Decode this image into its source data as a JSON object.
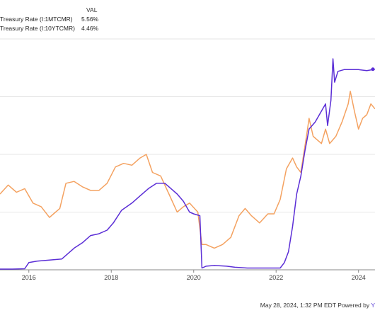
{
  "legend": {
    "header": "VAL",
    "series": [
      {
        "name": "Treasury Rate (I:1MTCMR)",
        "value": "5.56%",
        "color": "#5b2ed6"
      },
      {
        "name": "Treasury Rate (I:10YTCMR)",
        "value": "4.46%",
        "color": "#f4a261"
      }
    ]
  },
  "footer": {
    "text": "May 28, 2024, 1:32 PM EDT Powered by",
    "brand": "Y"
  },
  "chart_data": {
    "type": "line",
    "title": "",
    "xlabel": "",
    "ylabel": "",
    "x_ticks": [
      "2016",
      "2018",
      "2020",
      "2022",
      "2024"
    ],
    "x_range": [
      2015.3,
      2024.4
    ],
    "y_range": [
      0,
      6.4
    ],
    "grid": "horizontal",
    "series": [
      {
        "name": "Treasury Rate (I:1MTCMR)",
        "color": "#5b2ed6",
        "points": [
          [
            2015.3,
            0.02
          ],
          [
            2015.6,
            0.02
          ],
          [
            2015.9,
            0.03
          ],
          [
            2016.0,
            0.2
          ],
          [
            2016.2,
            0.24
          ],
          [
            2016.4,
            0.26
          ],
          [
            2016.6,
            0.28
          ],
          [
            2016.8,
            0.3
          ],
          [
            2016.95,
            0.45
          ],
          [
            2017.1,
            0.6
          ],
          [
            2017.3,
            0.75
          ],
          [
            2017.5,
            0.95
          ],
          [
            2017.7,
            1.0
          ],
          [
            2017.9,
            1.1
          ],
          [
            2018.05,
            1.3
          ],
          [
            2018.25,
            1.65
          ],
          [
            2018.5,
            1.85
          ],
          [
            2018.7,
            2.05
          ],
          [
            2018.9,
            2.25
          ],
          [
            2019.1,
            2.4
          ],
          [
            2019.3,
            2.4
          ],
          [
            2019.5,
            2.2
          ],
          [
            2019.6,
            2.1
          ],
          [
            2019.75,
            1.9
          ],
          [
            2019.9,
            1.6
          ],
          [
            2020.0,
            1.55
          ],
          [
            2020.15,
            1.5
          ],
          [
            2020.2,
            0.05
          ],
          [
            2020.3,
            0.1
          ],
          [
            2020.5,
            0.12
          ],
          [
            2020.8,
            0.1
          ],
          [
            2021.0,
            0.07
          ],
          [
            2021.3,
            0.05
          ],
          [
            2021.6,
            0.05
          ],
          [
            2021.9,
            0.05
          ],
          [
            2022.1,
            0.05
          ],
          [
            2022.2,
            0.2
          ],
          [
            2022.3,
            0.5
          ],
          [
            2022.4,
            1.2
          ],
          [
            2022.5,
            2.1
          ],
          [
            2022.6,
            2.6
          ],
          [
            2022.7,
            3.3
          ],
          [
            2022.8,
            3.9
          ],
          [
            2022.95,
            4.1
          ],
          [
            2023.1,
            4.4
          ],
          [
            2023.2,
            4.6
          ],
          [
            2023.25,
            4.0
          ],
          [
            2023.33,
            4.7
          ],
          [
            2023.38,
            5.85
          ],
          [
            2023.42,
            5.2
          ],
          [
            2023.5,
            5.5
          ],
          [
            2023.65,
            5.55
          ],
          [
            2023.8,
            5.55
          ],
          [
            2024.0,
            5.55
          ],
          [
            2024.2,
            5.52
          ],
          [
            2024.4,
            5.56
          ]
        ]
      },
      {
        "name": "Treasury Rate (I:10YTCMR)",
        "color": "#f4a261",
        "points": [
          [
            2015.3,
            2.1
          ],
          [
            2015.5,
            2.35
          ],
          [
            2015.7,
            2.15
          ],
          [
            2015.9,
            2.25
          ],
          [
            2016.1,
            1.85
          ],
          [
            2016.3,
            1.75
          ],
          [
            2016.5,
            1.45
          ],
          [
            2016.6,
            1.55
          ],
          [
            2016.75,
            1.7
          ],
          [
            2016.9,
            2.4
          ],
          [
            2017.1,
            2.45
          ],
          [
            2017.3,
            2.3
          ],
          [
            2017.5,
            2.2
          ],
          [
            2017.7,
            2.2
          ],
          [
            2017.9,
            2.4
          ],
          [
            2018.1,
            2.85
          ],
          [
            2018.3,
            2.95
          ],
          [
            2018.5,
            2.9
          ],
          [
            2018.7,
            3.1
          ],
          [
            2018.85,
            3.2
          ],
          [
            2019.0,
            2.7
          ],
          [
            2019.2,
            2.6
          ],
          [
            2019.4,
            2.1
          ],
          [
            2019.6,
            1.6
          ],
          [
            2019.75,
            1.75
          ],
          [
            2019.9,
            1.85
          ],
          [
            2020.1,
            1.6
          ],
          [
            2020.2,
            0.7
          ],
          [
            2020.3,
            0.7
          ],
          [
            2020.5,
            0.6
          ],
          [
            2020.7,
            0.7
          ],
          [
            2020.9,
            0.9
          ],
          [
            2021.1,
            1.5
          ],
          [
            2021.25,
            1.7
          ],
          [
            2021.4,
            1.5
          ],
          [
            2021.6,
            1.3
          ],
          [
            2021.8,
            1.55
          ],
          [
            2021.95,
            1.55
          ],
          [
            2022.1,
            1.95
          ],
          [
            2022.25,
            2.8
          ],
          [
            2022.4,
            3.1
          ],
          [
            2022.5,
            2.85
          ],
          [
            2022.6,
            2.7
          ],
          [
            2022.75,
            3.8
          ],
          [
            2022.8,
            4.2
          ],
          [
            2022.9,
            3.7
          ],
          [
            2023.1,
            3.5
          ],
          [
            2023.2,
            3.9
          ],
          [
            2023.3,
            3.5
          ],
          [
            2023.45,
            3.7
          ],
          [
            2023.6,
            4.1
          ],
          [
            2023.75,
            4.6
          ],
          [
            2023.8,
            4.95
          ],
          [
            2023.9,
            4.4
          ],
          [
            2024.0,
            3.9
          ],
          [
            2024.1,
            4.2
          ],
          [
            2024.2,
            4.3
          ],
          [
            2024.3,
            4.6
          ],
          [
            2024.4,
            4.46
          ]
        ]
      }
    ]
  }
}
